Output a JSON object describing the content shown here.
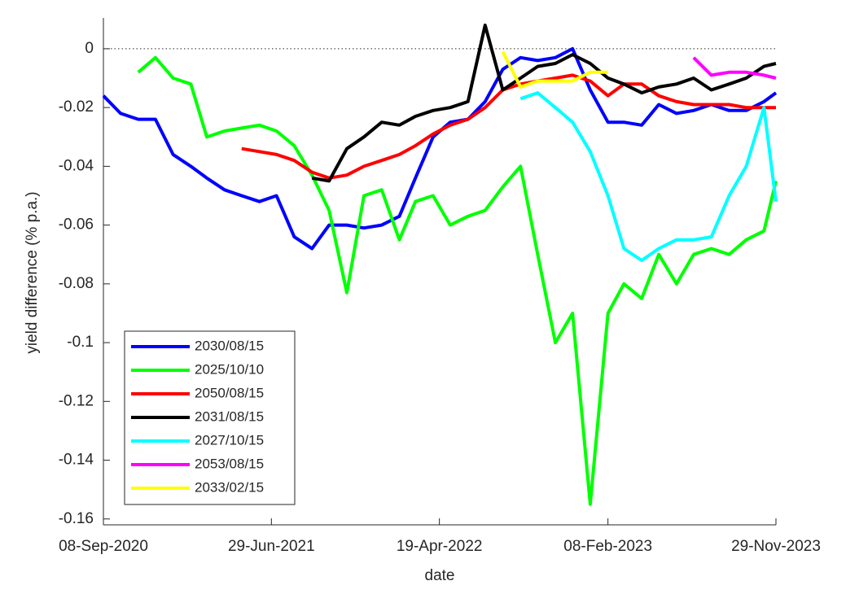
{
  "chart_data": {
    "type": "line",
    "xlabel": "date",
    "ylabel": "yield difference (% p.a.)",
    "x": [
      "2020-09-08",
      "2020-10-08",
      "2020-11-08",
      "2020-12-08",
      "2021-01-08",
      "2021-02-08",
      "2021-03-08",
      "2021-04-08",
      "2021-05-08",
      "2021-06-08",
      "2021-07-08",
      "2021-08-08",
      "2021-09-08",
      "2021-10-08",
      "2021-11-08",
      "2021-12-08",
      "2022-01-08",
      "2022-02-08",
      "2022-03-08",
      "2022-04-08",
      "2022-05-08",
      "2022-06-08",
      "2022-07-08",
      "2022-08-08",
      "2022-09-08",
      "2022-10-08",
      "2022-11-08",
      "2022-12-08",
      "2023-01-08",
      "2023-02-08",
      "2023-03-08",
      "2023-04-08",
      "2023-05-08",
      "2023-06-08",
      "2023-07-08",
      "2023-08-08",
      "2023-09-08",
      "2023-10-08",
      "2023-11-08",
      "2023-11-29"
    ],
    "series": [
      {
        "name": "2030/08/15",
        "color": "#0000ff",
        "values": [
          -0.016,
          -0.022,
          -0.024,
          -0.024,
          -0.036,
          -0.04,
          -0.044,
          -0.048,
          -0.05,
          -0.052,
          -0.05,
          -0.064,
          -0.068,
          -0.06,
          -0.06,
          -0.061,
          -0.06,
          -0.057,
          -0.044,
          -0.03,
          -0.025,
          -0.024,
          -0.018,
          -0.007,
          -0.003,
          -0.004,
          -0.003,
          0,
          -0.014,
          -0.025,
          -0.025,
          -0.026,
          -0.019,
          -0.022,
          -0.021,
          -0.019,
          -0.021,
          -0.021,
          -0.018,
          -0.015
        ]
      },
      {
        "name": "2025/10/10",
        "color": "#00ff00",
        "values": [
          null,
          null,
          -0.008,
          -0.003,
          -0.01,
          -0.012,
          -0.03,
          -0.028,
          -0.027,
          -0.026,
          -0.028,
          -0.033,
          -0.043,
          -0.055,
          -0.083,
          -0.05,
          -0.048,
          -0.065,
          -0.052,
          -0.05,
          -0.06,
          -0.057,
          -0.055,
          -0.047,
          -0.04,
          -0.07,
          -0.1,
          -0.09,
          -0.155,
          -0.09,
          -0.08,
          -0.085,
          -0.07,
          -0.08,
          -0.07,
          -0.068,
          -0.07,
          -0.065,
          -0.062,
          -0.045
        ]
      },
      {
        "name": "2050/08/15",
        "color": "#ff0000",
        "values": [
          null,
          null,
          null,
          null,
          null,
          null,
          null,
          null,
          -0.034,
          -0.035,
          -0.036,
          -0.038,
          -0.042,
          -0.044,
          -0.043,
          -0.04,
          -0.038,
          -0.036,
          -0.033,
          -0.029,
          -0.026,
          -0.024,
          -0.02,
          -0.014,
          -0.012,
          -0.011,
          -0.01,
          -0.009,
          -0.011,
          -0.016,
          -0.012,
          -0.012,
          -0.016,
          -0.018,
          -0.019,
          -0.019,
          -0.019,
          -0.02,
          -0.02,
          -0.02
        ]
      },
      {
        "name": "2031/08/15",
        "color": "#000000",
        "values": [
          null,
          null,
          null,
          null,
          null,
          null,
          null,
          null,
          null,
          null,
          null,
          null,
          -0.044,
          -0.045,
          -0.034,
          -0.03,
          -0.025,
          -0.026,
          -0.023,
          -0.021,
          -0.02,
          -0.018,
          0.008,
          -0.014,
          -0.01,
          -0.006,
          -0.005,
          -0.002,
          -0.005,
          -0.01,
          -0.012,
          -0.015,
          -0.013,
          -0.012,
          -0.01,
          -0.014,
          -0.012,
          -0.01,
          -0.006,
          -0.005
        ]
      },
      {
        "name": "2027/10/15",
        "color": "#00ffff",
        "values": [
          null,
          null,
          null,
          null,
          null,
          null,
          null,
          null,
          null,
          null,
          null,
          null,
          null,
          null,
          null,
          null,
          null,
          null,
          null,
          null,
          null,
          null,
          null,
          null,
          -0.017,
          -0.015,
          -0.02,
          -0.025,
          -0.035,
          -0.05,
          -0.068,
          -0.072,
          -0.068,
          -0.065,
          -0.065,
          -0.064,
          -0.05,
          -0.04,
          -0.02,
          -0.052
        ]
      },
      {
        "name": "2053/08/15",
        "color": "#ff00ff",
        "values": [
          null,
          null,
          null,
          null,
          null,
          null,
          null,
          null,
          null,
          null,
          null,
          null,
          null,
          null,
          null,
          null,
          null,
          null,
          null,
          null,
          null,
          null,
          null,
          null,
          null,
          null,
          null,
          null,
          null,
          null,
          null,
          null,
          null,
          null,
          -0.003,
          -0.009,
          -0.008,
          -0.008,
          -0.009,
          -0.01
        ]
      },
      {
        "name": "2033/02/15",
        "color": "#ffff00",
        "values": [
          null,
          null,
          null,
          null,
          null,
          null,
          null,
          null,
          null,
          null,
          null,
          null,
          null,
          null,
          null,
          null,
          null,
          null,
          null,
          null,
          null,
          null,
          null,
          -0.001,
          -0.013,
          -0.011,
          -0.011,
          -0.011,
          -0.008,
          -0.008,
          null,
          null,
          null,
          null,
          null,
          null,
          null,
          null,
          null,
          null
        ]
      }
    ],
    "xlim": [
      "2020-09-08",
      "2023-11-29"
    ],
    "xticks": [
      {
        "value": "2020-09-08",
        "label": "08-Sep-2020"
      },
      {
        "value": "2021-06-29",
        "label": "29-Jun-2021"
      },
      {
        "value": "2022-04-19",
        "label": "19-Apr-2022"
      },
      {
        "value": "2023-02-08",
        "label": "08-Feb-2023"
      },
      {
        "value": "2023-11-29",
        "label": "29-Nov-2023"
      }
    ],
    "ylim": [
      -0.162,
      0.0105
    ],
    "yticks": [
      -0.16,
      -0.14,
      -0.12,
      -0.1,
      -0.08,
      -0.06,
      -0.04,
      -0.02,
      0
    ],
    "reference_line": 0,
    "legend": "lower left"
  }
}
